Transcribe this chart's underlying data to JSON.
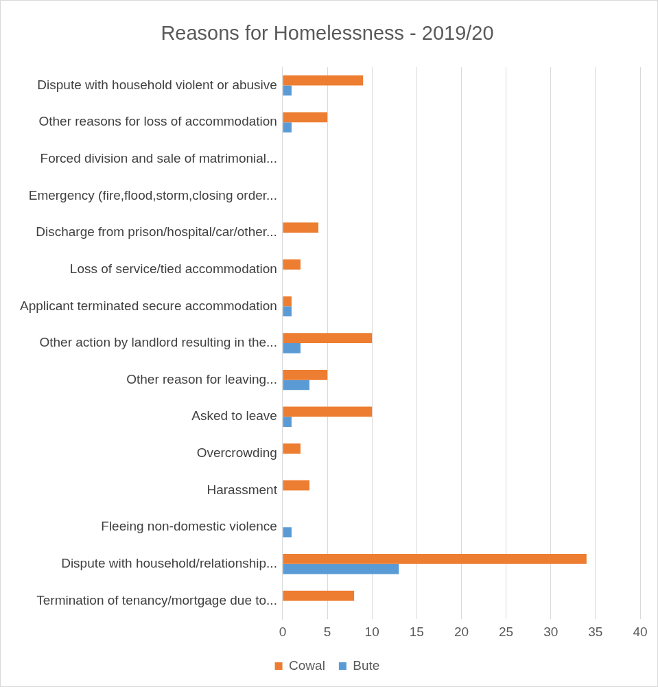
{
  "chart_data": {
    "type": "bar",
    "orientation": "horizontal",
    "title": "Reasons for Homelessness - 2019/20",
    "categories": [
      "Dispute with household violent or abusive",
      "Other reasons for loss of accommodation",
      "Forced division and sale of matrimonial...",
      "Emergency (fire,flood,storm,closing order...",
      "Discharge from prison/hospital/car/other...",
      "Loss of service/tied accommodation",
      "Applicant terminated secure accommodation",
      "Other action by landlord resulting in the...",
      "Other reason for leaving...",
      "Asked to leave",
      "Overcrowding",
      "Harassment",
      "Fleeing non-domestic violence",
      "Dispute with household/relationship...",
      "Termination of tenancy/mortgage due to..."
    ],
    "series": [
      {
        "name": "Cowal",
        "color": "#ed7d31",
        "values": [
          9,
          5,
          0,
          0,
          4,
          2,
          1,
          10,
          5,
          10,
          2,
          3,
          0,
          34,
          8
        ]
      },
      {
        "name": "Bute",
        "color": "#5b9bd5",
        "values": [
          1,
          1,
          0,
          0,
          0,
          0,
          1,
          2,
          3,
          1,
          0,
          0,
          1,
          13,
          0
        ]
      }
    ],
    "xlim": [
      0,
      40
    ],
    "xticks": [
      0,
      5,
      10,
      15,
      20,
      25,
      30,
      35,
      40
    ],
    "grid": "x",
    "legend": "bottom"
  }
}
